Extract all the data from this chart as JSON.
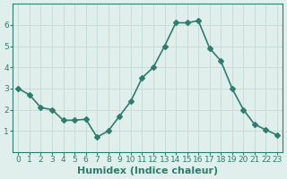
{
  "x": [
    0,
    1,
    2,
    3,
    4,
    5,
    6,
    7,
    8,
    9,
    10,
    11,
    12,
    13,
    14,
    15,
    16,
    17,
    18,
    19,
    20,
    21,
    22,
    23
  ],
  "y": [
    3.0,
    2.7,
    2.1,
    2.0,
    1.5,
    1.5,
    1.55,
    0.7,
    1.0,
    1.7,
    2.4,
    3.5,
    4.0,
    5.0,
    6.1,
    6.1,
    6.2,
    4.9,
    4.3,
    3.0,
    2.0,
    1.3,
    1.05,
    0.8
  ],
  "line_color": "#2e7d6e",
  "marker": "D",
  "marker_size": 3,
  "linewidth": 1.2,
  "xlabel": "Humidex (Indice chaleur)",
  "xlabel_fontsize": 8,
  "ylim": [
    0,
    7
  ],
  "xlim": [
    -0.5,
    23.5
  ],
  "yticks": [
    1,
    2,
    3,
    4,
    5,
    6
  ],
  "xticks": [
    0,
    1,
    2,
    3,
    4,
    5,
    6,
    7,
    8,
    9,
    10,
    11,
    12,
    13,
    14,
    15,
    16,
    17,
    18,
    19,
    20,
    21,
    22,
    23
  ],
  "grid_color": "#c8ddd8",
  "bg_color": "#e0eeec",
  "tick_fontsize": 6.5,
  "fig_bg": "#e0eeec"
}
